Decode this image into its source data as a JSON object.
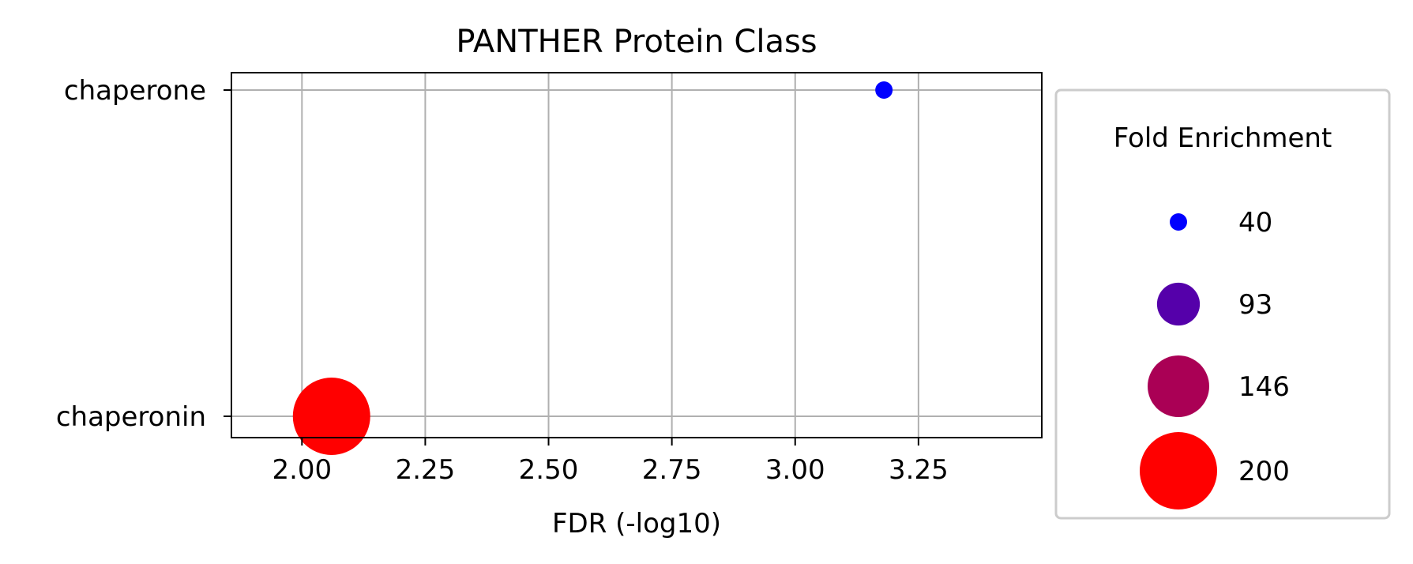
{
  "chart_data": {
    "type": "scatter",
    "title": "PANTHER Protein Class",
    "xlabel": "FDR (-log10)",
    "ylabel": "",
    "xlim": [
      1.857,
      3.5
    ],
    "x_ticks": [
      2.0,
      2.25,
      2.5,
      2.75,
      3.0,
      3.25
    ],
    "x_tick_labels": [
      "2.00",
      "2.25",
      "2.50",
      "2.75",
      "3.00",
      "3.25"
    ],
    "categories": [
      "chaperone",
      "chaperonin"
    ],
    "grid": true,
    "points": [
      {
        "category": "chaperone",
        "x": 3.18,
        "fold_enrichment": 40,
        "color": "#0000ff"
      },
      {
        "category": "chaperonin",
        "x": 2.06,
        "fold_enrichment": 200,
        "color": "#ff0000"
      }
    ],
    "legend": {
      "title": "Fold Enrichment",
      "placement": "outside-right",
      "entries": [
        {
          "label": "40",
          "value": 40,
          "color": "#0000ff"
        },
        {
          "label": "93",
          "value": 93,
          "color": "#5500aa"
        },
        {
          "label": "146",
          "value": 146,
          "color": "#aa0055"
        },
        {
          "label": "200",
          "value": 200,
          "color": "#ff0000"
        }
      ]
    }
  }
}
